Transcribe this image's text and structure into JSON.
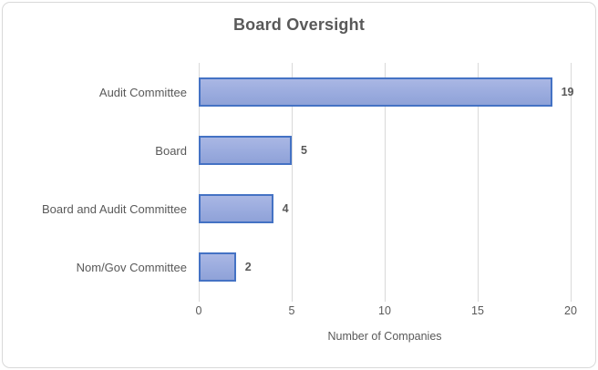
{
  "window": {
    "background": "#ffffff",
    "frame_border_color": "#d9d9d9"
  },
  "chart_data": {
    "type": "bar",
    "orientation": "horizontal",
    "title": "Board Oversight",
    "categories": [
      "Audit Committee",
      "Board",
      "Board and Audit Committee",
      "Nom/Gov Committee"
    ],
    "values": [
      19,
      5,
      4,
      2
    ],
    "data_labels": [
      "19",
      "5",
      "4",
      "2"
    ],
    "xlabel": "Number of Companies",
    "ylabel": "",
    "x_ticks": [
      0,
      5,
      10,
      15,
      20
    ],
    "xlim": [
      0,
      20
    ],
    "grid": true,
    "legend_position": "none",
    "colors": {
      "bar_fill_top": "#aab7e4",
      "bar_fill_mid": "#9aabde",
      "bar_fill_bottom": "#8fa2d8",
      "bar_border": "#4472c4",
      "gridline": "#d9d9d9",
      "text": "#595959",
      "frame_border": "#d9d9d9"
    }
  }
}
